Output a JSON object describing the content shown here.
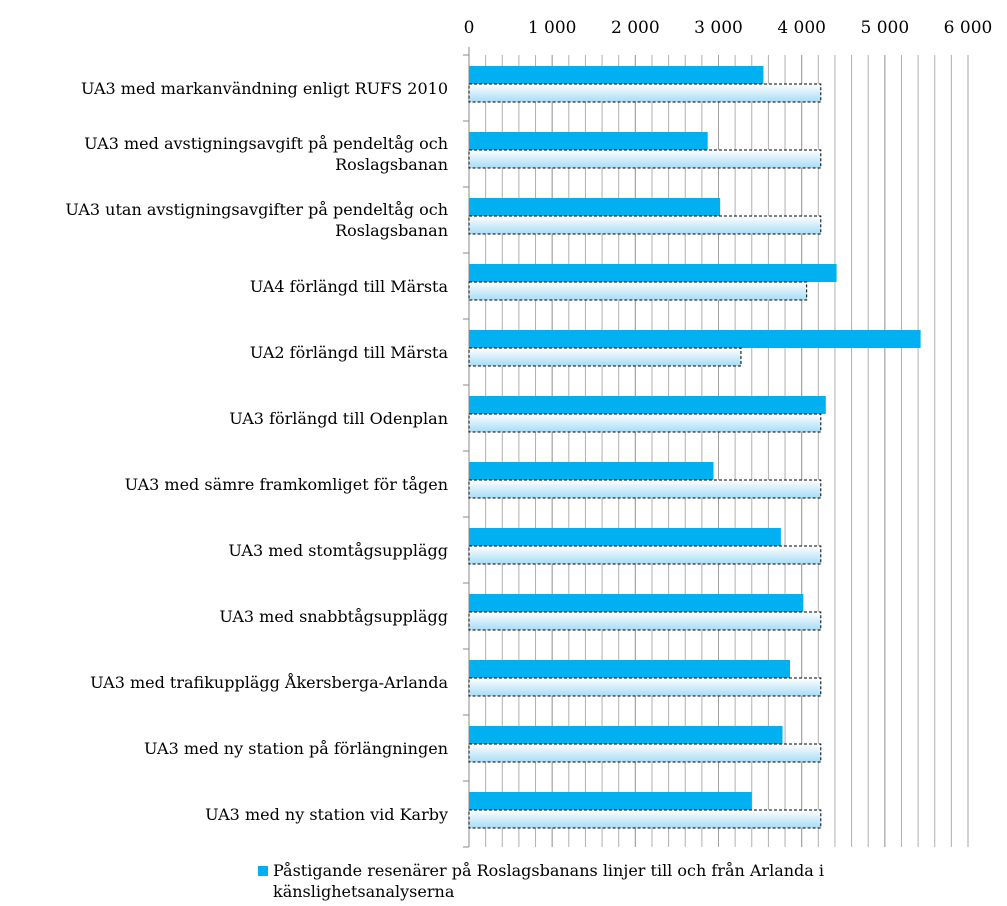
{
  "chart_data": {
    "type": "hbar",
    "categories": [
      "UA3 med markanvändning enligt RUFS 2010",
      "UA3 med avstigningsavgift på pendeltåg och Roslagsbanan",
      "UA3 utan avstigningsavgifter på pendeltåg och Roslagsbanan",
      "UA4 förlängd till Märsta",
      "UA2 förlängd till Märsta",
      "UA3 förlängd till Odenplan",
      "UA3 med sämre framkomliget för tågen",
      "UA3 med stomtågsupplägg",
      "UA3 med snabbtågsupplägg",
      "UA3 med trafikupplägg Åkersberga-Arlanda",
      "UA3 med ny station på förlängningen",
      "UA3 med ny station vid Karby"
    ],
    "series": [
      {
        "name": "Påstigande resenärer på Roslagsbanans linjer till och från Arlanda i känslighetsanalyserna",
        "color": "#00b0f0",
        "values": [
          3540,
          2870,
          3020,
          4420,
          5430,
          4290,
          2940,
          3750,
          4020,
          3860,
          3770,
          3400
        ]
      },
      {
        "color": "#a6dcf7",
        "values": [
          4230,
          4230,
          4230,
          4060,
          3270,
          4230,
          4230,
          4230,
          4230,
          4230,
          4230,
          4230
        ]
      }
    ],
    "xlim": [
      0,
      6000
    ],
    "xticks": [
      0,
      {
        "value": 1000,
        "label": "1 000"
      },
      {
        "value": 2000,
        "label": "2 000"
      },
      {
        "value": 3000,
        "label": "3 000"
      },
      {
        "value": 4000,
        "label": "4 000"
      },
      {
        "value": 5000,
        "label": "5 000"
      },
      {
        "value": 6000,
        "label": "6 000"
      }
    ],
    "minor_grid_interval": 200,
    "grid": true,
    "legend": "bottom"
  }
}
